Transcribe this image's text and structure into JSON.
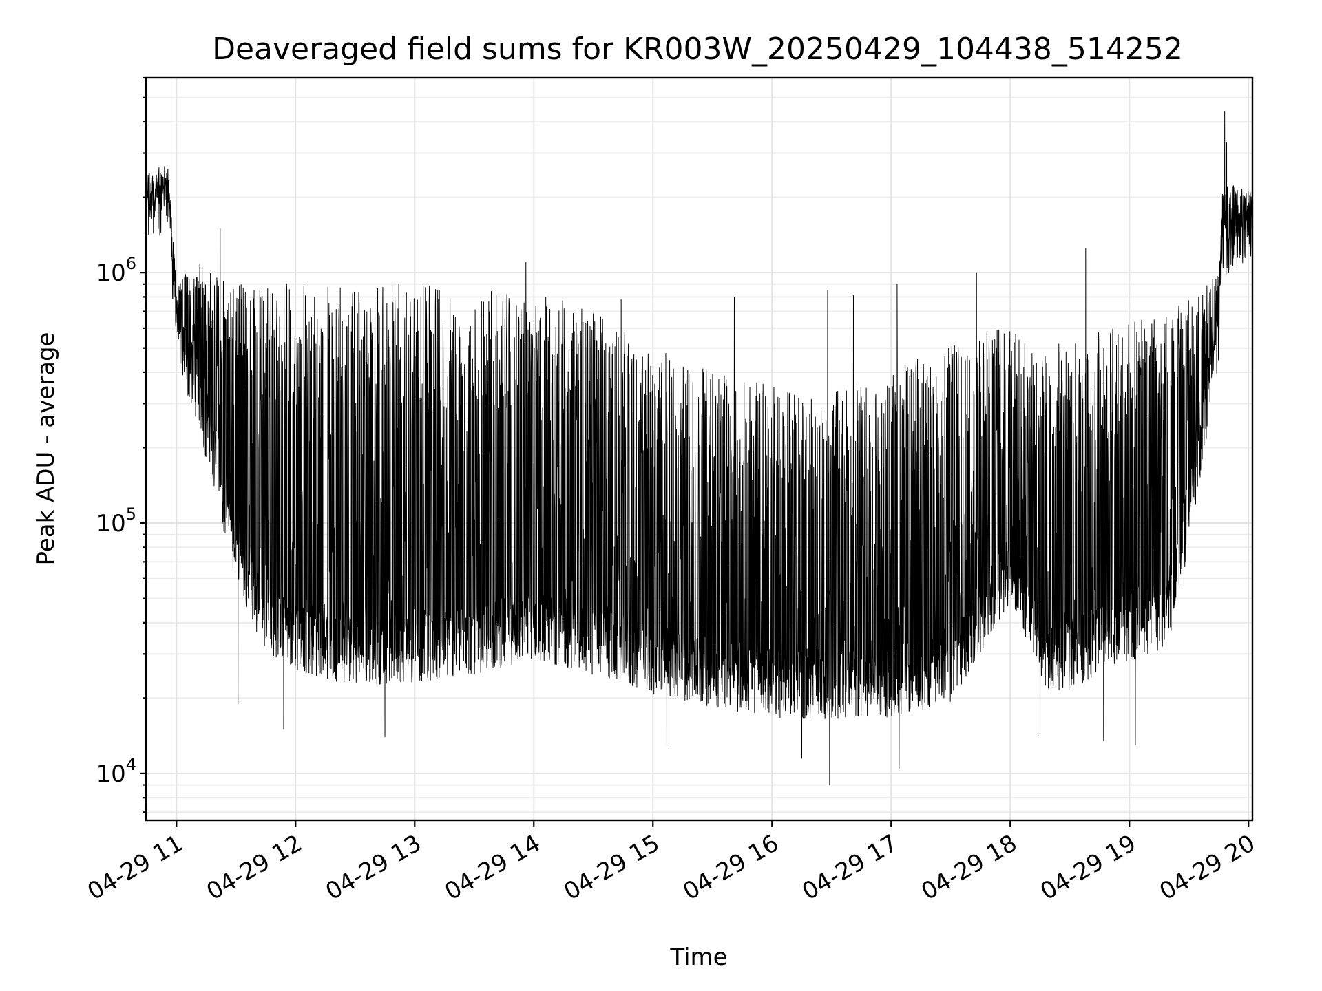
{
  "chart_data": {
    "type": "line",
    "title": "Deaveraged field sums for KR003W_20250429_104438_514252",
    "xlabel": "Time",
    "ylabel": "Peak ADU - average",
    "x_ticks": [
      "04-29 11",
      "04-29 12",
      "04-29 13",
      "04-29 14",
      "04-29 15",
      "04-29 16",
      "04-29 17",
      "04-29 18",
      "04-29 19",
      "04-29 20"
    ],
    "y_ticks": [
      {
        "value": 10000,
        "base": "10",
        "exp": "4"
      },
      {
        "value": 100000,
        "base": "10",
        "exp": "5"
      },
      {
        "value": 1000000,
        "base": "10",
        "exp": "6"
      }
    ],
    "x_range": [
      "2025-04-29 10:44:38",
      "2025-04-29 20:02:00"
    ],
    "y_scale": "log",
    "ylim": [
      6500,
      6000000
    ],
    "grid": true,
    "line_color": "#000000",
    "envelope": {
      "x": [
        "2025-04-29 10:44",
        "2025-04-29 10:56",
        "2025-04-29 11:00",
        "2025-04-29 11:10",
        "2025-04-29 11:20",
        "2025-04-29 11:30",
        "2025-04-29 11:45",
        "2025-04-29 12:00",
        "2025-04-29 12:30",
        "2025-04-29 13:00",
        "2025-04-29 13:30",
        "2025-04-29 14:00",
        "2025-04-29 14:30",
        "2025-04-29 15:00",
        "2025-04-29 15:30",
        "2025-04-29 16:00",
        "2025-04-29 16:30",
        "2025-04-29 17:00",
        "2025-04-29 17:30",
        "2025-04-29 18:00",
        "2025-04-29 18:10",
        "2025-04-29 18:20",
        "2025-04-29 18:40",
        "2025-04-29 19:00",
        "2025-04-29 19:20",
        "2025-04-29 19:30",
        "2025-04-29 19:45",
        "2025-04-29 19:47",
        "2025-04-29 20:02"
      ],
      "base": [
        1700000,
        1800000,
        550000,
        320000,
        160000,
        70000,
        38000,
        32000,
        28000,
        29000,
        31000,
        36000,
        31000,
        26000,
        23000,
        21000,
        20000,
        21000,
        24000,
        60000,
        40000,
        24000,
        30000,
        35000,
        40000,
        100000,
        550000,
        1200000,
        1400000
      ],
      "top": [
        2600000,
        2400000,
        900000,
        1100000,
        1000000,
        900000,
        880000,
        920000,
        920000,
        900000,
        880000,
        850000,
        720000,
        500000,
        420000,
        350000,
        330000,
        420000,
        520000,
        650000,
        480000,
        520000,
        560000,
        640000,
        700000,
        800000,
        1000000,
        2300000,
        2100000
      ]
    },
    "spikes": [
      {
        "x": "2025-04-29 11:22",
        "y": 1500000
      },
      {
        "x": "2025-04-29 13:56",
        "y": 1100000
      },
      {
        "x": "2025-04-29 14:44",
        "y": 780000
      },
      {
        "x": "2025-04-29 15:41",
        "y": 800000
      },
      {
        "x": "2025-04-29 16:28",
        "y": 850000
      },
      {
        "x": "2025-04-29 16:41",
        "y": 810000
      },
      {
        "x": "2025-04-29 17:03",
        "y": 900000
      },
      {
        "x": "2025-04-29 17:43",
        "y": 1000000
      },
      {
        "x": "2025-04-29 18:38",
        "y": 1250000
      },
      {
        "x": "2025-04-29 19:48",
        "y": 4400000
      },
      {
        "x": "2025-04-29 19:49",
        "y": 3300000
      }
    ],
    "dips": [
      {
        "x": "2025-04-29 11:31",
        "y": 19000
      },
      {
        "x": "2025-04-29 11:54",
        "y": 15000
      },
      {
        "x": "2025-04-29 12:45",
        "y": 14000
      },
      {
        "x": "2025-04-29 15:07",
        "y": 13000
      },
      {
        "x": "2025-04-29 16:15",
        "y": 11500
      },
      {
        "x": "2025-04-29 16:29",
        "y": 9000
      },
      {
        "x": "2025-04-29 17:04",
        "y": 10500
      },
      {
        "x": "2025-04-29 18:15",
        "y": 14000
      },
      {
        "x": "2025-04-29 18:47",
        "y": 13500
      },
      {
        "x": "2025-04-29 19:03",
        "y": 13000
      }
    ]
  }
}
